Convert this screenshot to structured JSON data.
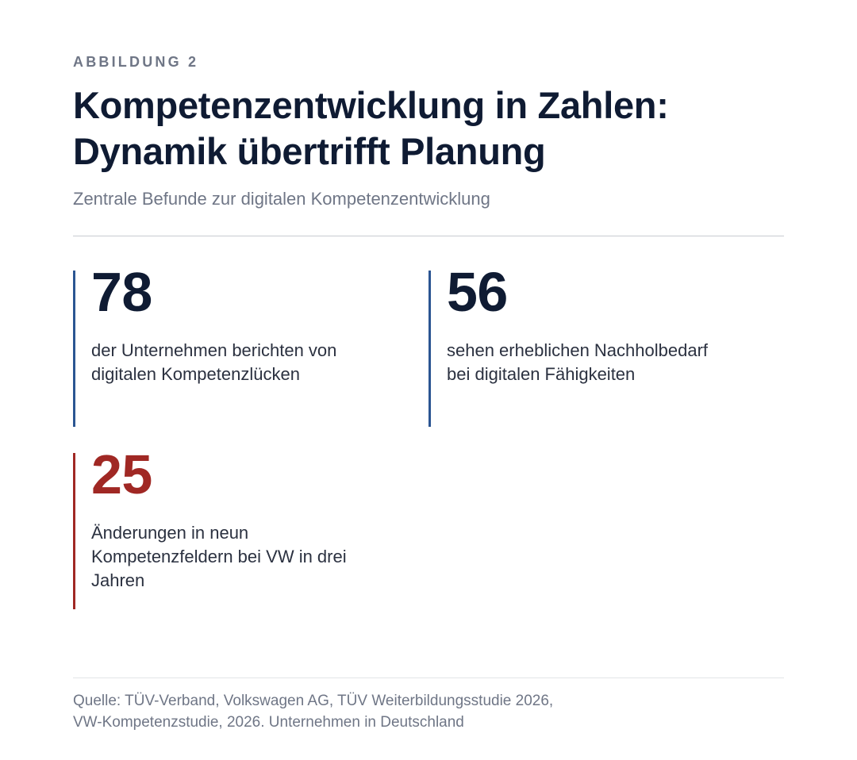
{
  "figure": {
    "label": "ABBILDUNG 2",
    "title_line1": "Kompetenzentwicklung in Zahlen:",
    "title_line2": "Dynamik übertrifft Planung",
    "subtitle": "Zentrale Befunde zur digitalen Kompetenzentwicklung"
  },
  "stats": [
    {
      "value": "78",
      "desc_line1": "der Unternehmen berichten von",
      "desc_line2": "digitalen Kompetenzlücken",
      "accent_color": "#2b5592"
    },
    {
      "value": "56",
      "desc_line1": "sehen erheblichen Nachholbedarf",
      "desc_line2": "bei digitalen Fähigkeiten",
      "accent_color": "#2b5592"
    },
    {
      "value": "25",
      "desc_line1": "Änderungen in neun",
      "desc_line2": "Kompetenzfeldern bei VW in drei",
      "desc_line3": "Jahren",
      "accent_color": "#a02824"
    }
  ],
  "source": {
    "line1": "Quelle: TÜV-Verband, Volkswagen AG, TÜV Weiterbildungsstudie 2026,",
    "line2": "VW-Kompetenzstudie, 2026. Unternehmen in Deutschland"
  },
  "colors": {
    "title": "#0f1b33",
    "muted": "#6f7686",
    "primary_accent": "#2b5592",
    "highlight_accent": "#a02824"
  }
}
